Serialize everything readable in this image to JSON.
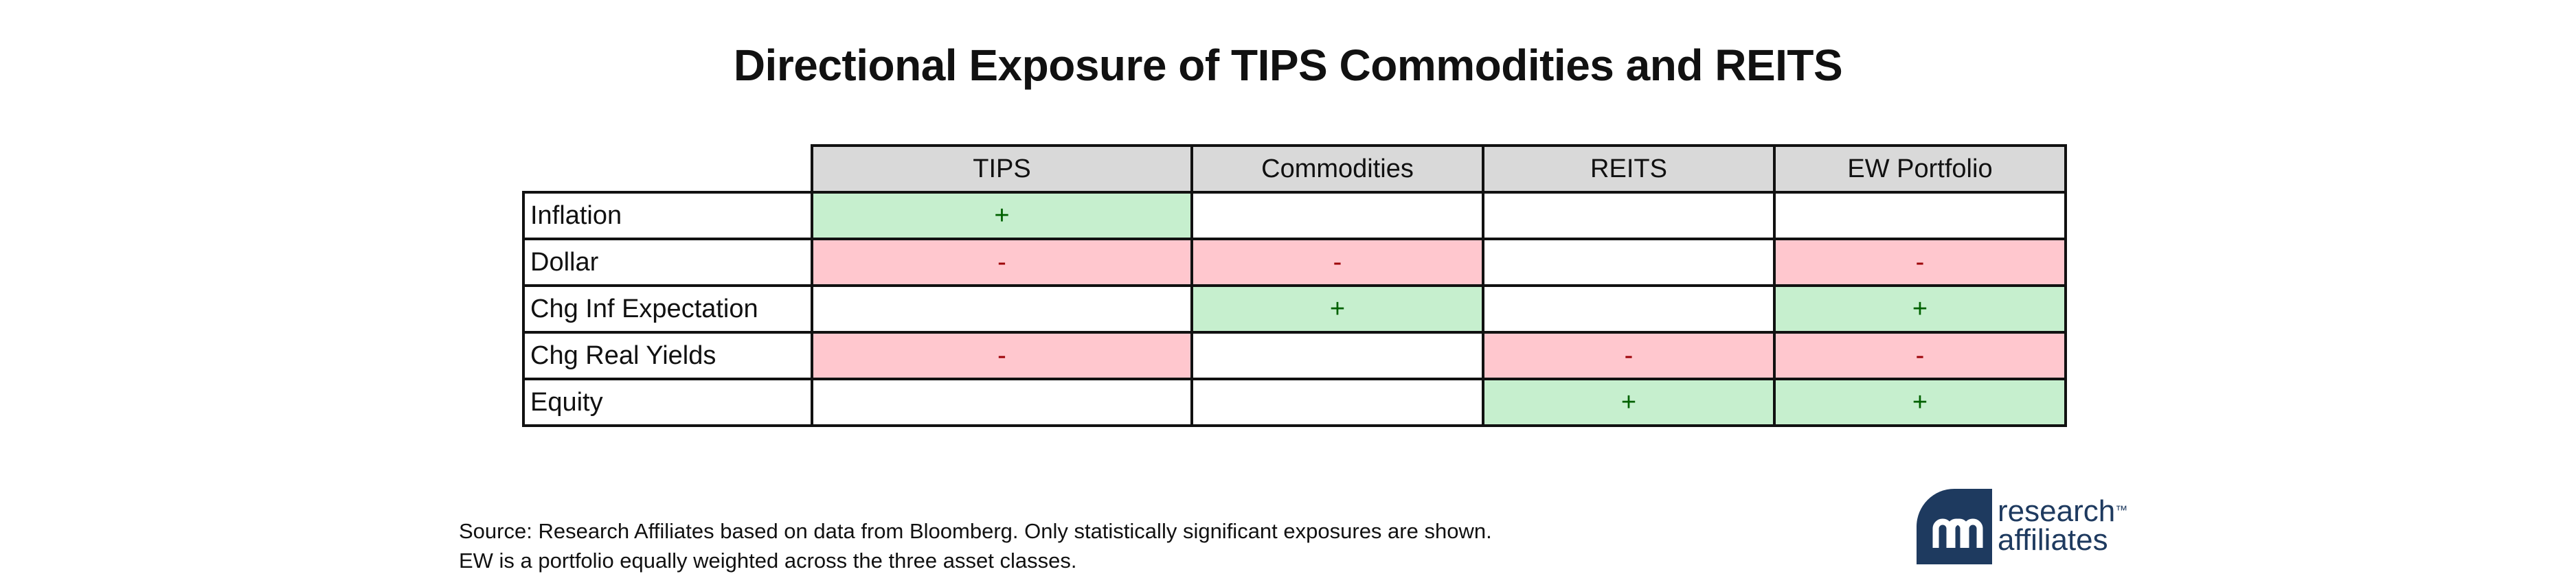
{
  "chart_data": {
    "type": "table",
    "title": "Directional Exposure of TIPS Commodities and REITS",
    "columns": [
      "TIPS",
      "Commodities",
      "REITS",
      "EW Portfolio"
    ],
    "rows": [
      {
        "label": "Inflation",
        "cells": [
          "+",
          "",
          "",
          ""
        ]
      },
      {
        "label": "Dollar",
        "cells": [
          "-",
          "-",
          "",
          "-"
        ]
      },
      {
        "label": "Chg Inf Expectation",
        "cells": [
          "",
          "+",
          "",
          "+"
        ]
      },
      {
        "label": "Chg Real Yields",
        "cells": [
          "-",
          "",
          "-",
          "-"
        ]
      },
      {
        "label": "Equity",
        "cells": [
          "",
          "",
          "+",
          "+"
        ]
      }
    ],
    "colors": {
      "positive_fill": "#c6efce",
      "positive_text": "#006100",
      "negative_fill": "#ffc7ce",
      "negative_text": "#9c0006",
      "header_fill": "#d9d9d9"
    }
  },
  "footnote": {
    "line1": "Source: Research Affiliates based on data from Bloomberg. Only statistically significant exposures are shown.",
    "line2": "EW is a portfolio equally weighted across the three asset classes."
  },
  "logo": {
    "line1": "research",
    "line2": "affiliates",
    "trademark": "™",
    "color": "#1e3a5f"
  }
}
